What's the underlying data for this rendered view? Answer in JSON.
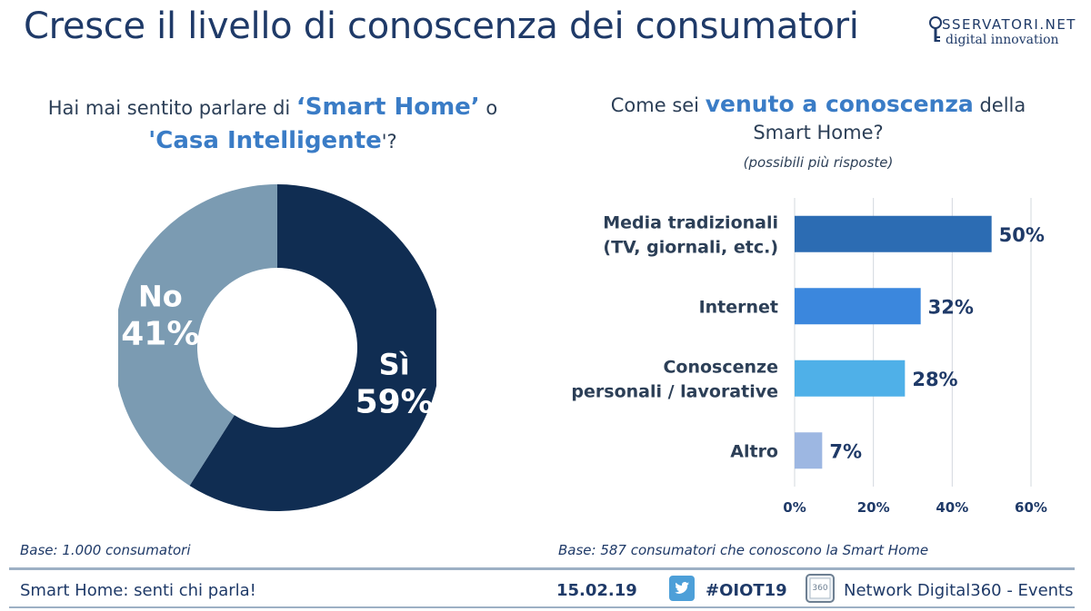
{
  "title": "Cresce il livello di conoscenza dei consumatori",
  "logo": {
    "line1": "SSERVATORI.NET",
    "line2": "digital innovation"
  },
  "left": {
    "q_prefix": "Hai mai sentito parlare di ",
    "q_hl1": "‘Smart Home’",
    "q_mid": " o",
    "q_hl2": "'Casa Intelligente",
    "q_suffix": "'?",
    "base": "Base: 1.000 consumatori"
  },
  "right": {
    "q_prefix": "Come sei ",
    "q_hl": "venuto a conoscenza",
    "q_suffix1": " della",
    "q_suffix2": "Smart Home?",
    "note": "(possibili più risposte)",
    "base": "Base: 587 consumatori che conoscono la Smart Home"
  },
  "footer": {
    "left": "Smart Home: senti chi parla!",
    "date": "15.02.19",
    "hashtag": "#OIOT19",
    "network": "Network Digital360 - Events",
    "icons": [
      "twitter-icon",
      "digital360-icon"
    ]
  },
  "colors": {
    "si": "#102d52",
    "no": "#7b9bb2",
    "bar1": "#2c6cb3",
    "bar2": "#3b87dd",
    "bar3": "#4fb0e8",
    "bar4": "#9db7e2",
    "title": "#1f3a68"
  },
  "chart_data": [
    {
      "type": "pie",
      "subtype": "donut",
      "categories": [
        "Sì",
        "No"
      ],
      "values": [
        59,
        41
      ],
      "value_labels": [
        "59%",
        "41%"
      ],
      "colors": [
        "#102d52",
        "#7b9bb2"
      ]
    },
    {
      "type": "bar",
      "orientation": "horizontal",
      "categories": [
        [
          "Media tradizionali",
          "(TV, giornali, etc.)"
        ],
        [
          "Internet"
        ],
        [
          "Conoscenze",
          "personali / lavorative"
        ],
        [
          "Altro"
        ]
      ],
      "values": [
        50,
        32,
        28,
        7
      ],
      "value_labels": [
        "50%",
        "32%",
        "28%",
        "7%"
      ],
      "xlim": [
        0,
        60
      ],
      "xticks": [
        "0%",
        "20%",
        "40%",
        "60%"
      ],
      "grid": true,
      "colors": [
        "#2c6cb3",
        "#3b87dd",
        "#4fb0e8",
        "#9db7e2"
      ]
    }
  ]
}
